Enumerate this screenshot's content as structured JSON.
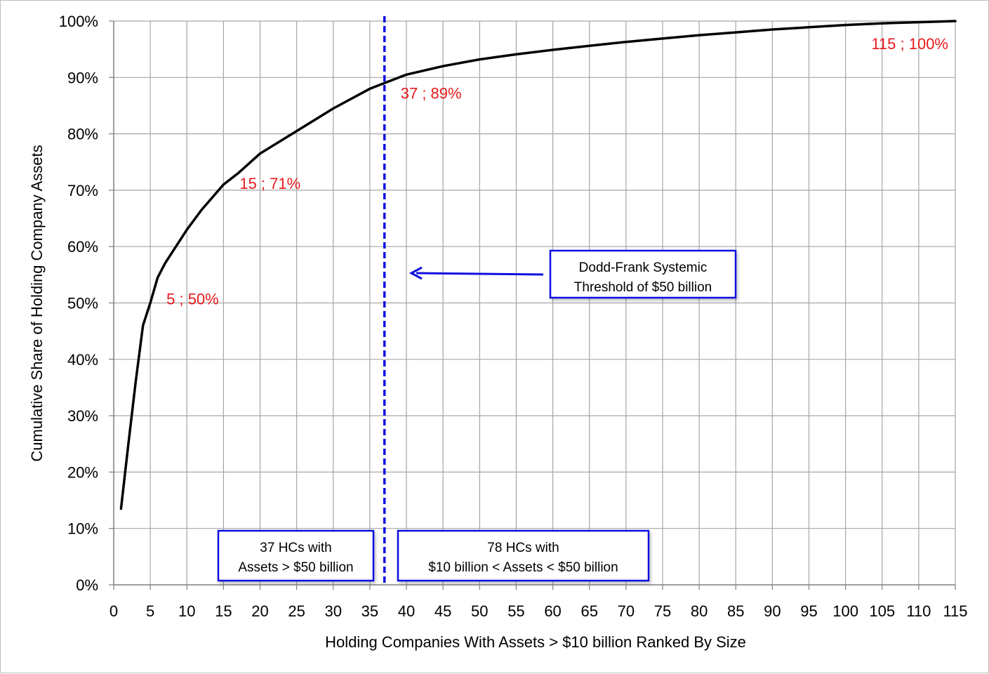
{
  "chart_data": {
    "type": "line",
    "title": "",
    "xlabel": "Holding Companies With Assets > $10 billion Ranked By Size",
    "ylabel": "Cumulative Share of Holding Company Assets",
    "xlim": [
      0,
      115
    ],
    "ylim": [
      0,
      100
    ],
    "x_ticks": [
      "0",
      "5",
      "10",
      "15",
      "20",
      "25",
      "30",
      "35",
      "40",
      "45",
      "50",
      "55",
      "60",
      "65",
      "70",
      "75",
      "80",
      "85",
      "90",
      "95",
      "100",
      "105",
      "110",
      "115"
    ],
    "y_ticks": [
      "0%",
      "10%",
      "20%",
      "30%",
      "40%",
      "50%",
      "60%",
      "70%",
      "80%",
      "90%",
      "100%"
    ],
    "grid": true,
    "legend": "none",
    "series": [
      {
        "color": "#000000",
        "x": [
          1,
          2,
          3,
          4,
          5,
          6,
          7,
          8,
          10,
          12,
          14,
          15,
          17,
          20,
          25,
          30,
          35,
          37,
          40,
          45,
          50,
          55,
          60,
          65,
          70,
          75,
          80,
          85,
          90,
          95,
          100,
          105,
          110,
          115
        ],
        "y": [
          13.5,
          25,
          36,
          46,
          50,
          54.5,
          57,
          59,
          63,
          66.5,
          69.5,
          71,
          73,
          76.5,
          80.5,
          84.5,
          88,
          89,
          90.5,
          92,
          93.2,
          94.1,
          94.9,
          95.6,
          96.3,
          96.9,
          97.5,
          98.0,
          98.5,
          98.9,
          99.3,
          99.6,
          99.8,
          100
        ]
      }
    ],
    "data_labels": [
      {
        "x": 5,
        "y": 50,
        "text": "5 ; 50%"
      },
      {
        "x": 15,
        "y": 71,
        "text": "15 ; 71%"
      },
      {
        "x": 37,
        "y": 89,
        "text": "37 ; 89%"
      },
      {
        "x": 115,
        "y": 100,
        "text": "115 ; 100%"
      }
    ],
    "threshold_line": {
      "x": 37,
      "color": "#1010e0"
    },
    "annotations": [
      {
        "id": "threshold",
        "lines": [
          "Dodd-Frank Systemic",
          "Threshold of $50 billion"
        ]
      },
      {
        "id": "large",
        "lines": [
          "37 HCs with",
          "Assets > $50 billion"
        ]
      },
      {
        "id": "small",
        "lines": [
          "78 HCs with",
          "$10 billion < Assets < $50 billion"
        ]
      }
    ],
    "colors": {
      "line": "#000000",
      "labels": "#e8191c",
      "threshold": "#1010e0",
      "grid": "#a6a6a6"
    }
  }
}
